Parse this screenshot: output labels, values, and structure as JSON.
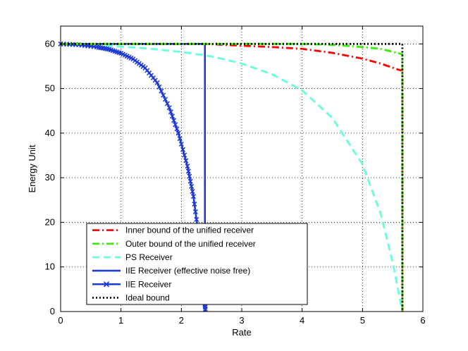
{
  "chart_data": {
    "type": "line",
    "title": "",
    "xlabel": "Rate",
    "ylabel": "Energy Unit",
    "xlim": [
      0,
      6
    ],
    "ylim": [
      0,
      64
    ],
    "xticks": [
      0,
      1,
      2,
      3,
      4,
      5,
      6
    ],
    "yticks": [
      0,
      10,
      20,
      30,
      40,
      50,
      60
    ],
    "grid": true,
    "legend_position": "bottom-left",
    "series": [
      {
        "name": "Inner bound of the unified receiver",
        "color": "#ff0000",
        "style": "dashdot",
        "marker": "none",
        "x": [
          0,
          1,
          2,
          2.4,
          3,
          3.5,
          4,
          4.5,
          5,
          5.3,
          5.6,
          5.66,
          5.66
        ],
        "y": [
          60,
          60,
          60,
          60,
          59.6,
          59.3,
          58.9,
          58.0,
          56.7,
          55.6,
          54.2,
          54.0,
          0
        ]
      },
      {
        "name": "Outer bound of the unified receiver",
        "color": "#33ee00",
        "style": "dashdot",
        "marker": "none",
        "x": [
          0,
          1,
          2,
          3,
          4,
          4.5,
          5,
          5.3,
          5.66,
          5.66
        ],
        "y": [
          60,
          60,
          60,
          60,
          60,
          59.8,
          59.3,
          58.9,
          57.7,
          0
        ]
      },
      {
        "name": "PS Receiver",
        "color": "#66ffdd",
        "style": "dashed",
        "marker": "none",
        "x": [
          0,
          0.5,
          1,
          1.5,
          2,
          2.5,
          3,
          3.5,
          4,
          4.5,
          5,
          5.3,
          5.5,
          5.66
        ],
        "y": [
          60,
          59.8,
          59.4,
          58.9,
          58.2,
          57.2,
          55.6,
          53.2,
          49.6,
          43.4,
          33.0,
          22.0,
          11.0,
          0
        ]
      },
      {
        "name": "IIE Receiver (effective noise free)",
        "color": "#1f3ad6",
        "style": "solid",
        "marker": "none",
        "x": [
          0,
          2.39,
          2.39
        ],
        "y": [
          60,
          60,
          0
        ]
      },
      {
        "name": "IIE Receiver",
        "color": "#1f3ad6",
        "style": "solid",
        "marker": "x",
        "x": [
          0,
          0.3,
          0.6,
          0.8,
          1.0,
          1.2,
          1.4,
          1.6,
          1.8,
          1.95,
          2.1,
          2.2,
          2.3,
          2.35,
          2.38,
          2.4
        ],
        "y": [
          60,
          59.8,
          59.3,
          58.8,
          57.9,
          56.6,
          54.6,
          51.3,
          45.7,
          40.0,
          32.6,
          25.8,
          15.5,
          8.0,
          3.0,
          0
        ]
      },
      {
        "name": "Ideal bound",
        "color": "#000000",
        "style": "dotted",
        "marker": "none",
        "x": [
          0,
          5.66,
          5.66
        ],
        "y": [
          60,
          60,
          0
        ]
      }
    ]
  }
}
